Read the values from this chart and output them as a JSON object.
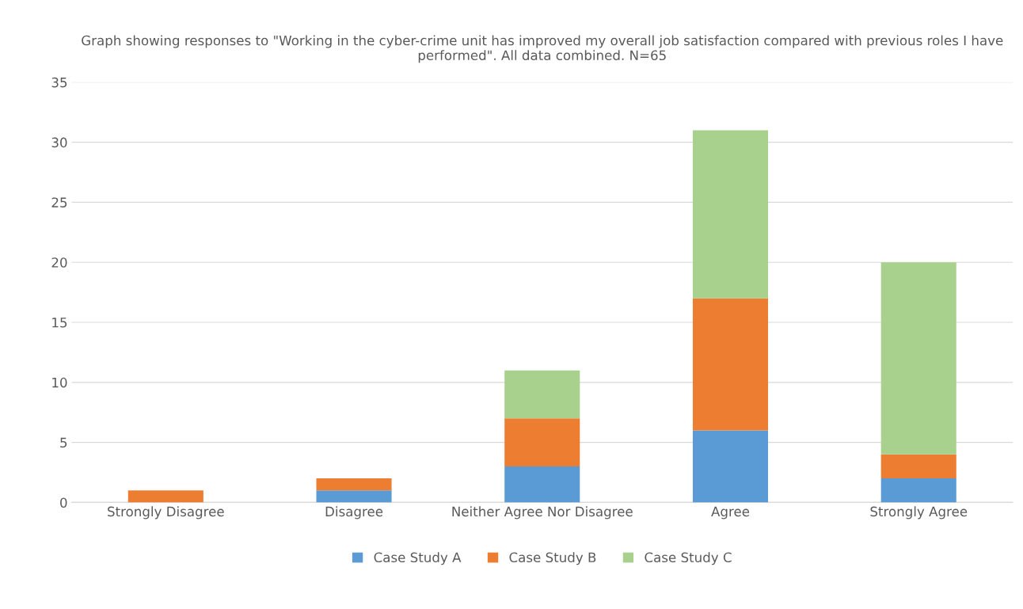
{
  "chart_data": {
    "type": "bar",
    "title": "Graph showing responses to \"Working in the cyber-crime unit has improved my overall job satisfaction compared with previous roles I have performed\". All data combined. N=65",
    "categories": [
      "Strongly Disagree",
      "Disagree",
      "Neither Agree Nor Disagree",
      "Agree",
      "Strongly Agree"
    ],
    "series": [
      {
        "name": "Case Study A",
        "color": "#5b9bd5",
        "values": [
          0,
          1,
          3,
          6,
          2
        ]
      },
      {
        "name": "Case Study B",
        "color": "#ed7d31",
        "values": [
          1,
          1,
          4,
          11,
          2
        ]
      },
      {
        "name": "Case Study C",
        "color": "#a9d18e",
        "values": [
          0,
          0,
          4,
          14,
          16
        ]
      }
    ],
    "stacked": true,
    "ylim": [
      0,
      35
    ],
    "yticks": [
      0,
      5,
      10,
      15,
      20,
      25,
      30,
      35
    ],
    "grid": "y",
    "legend": "bottom"
  }
}
